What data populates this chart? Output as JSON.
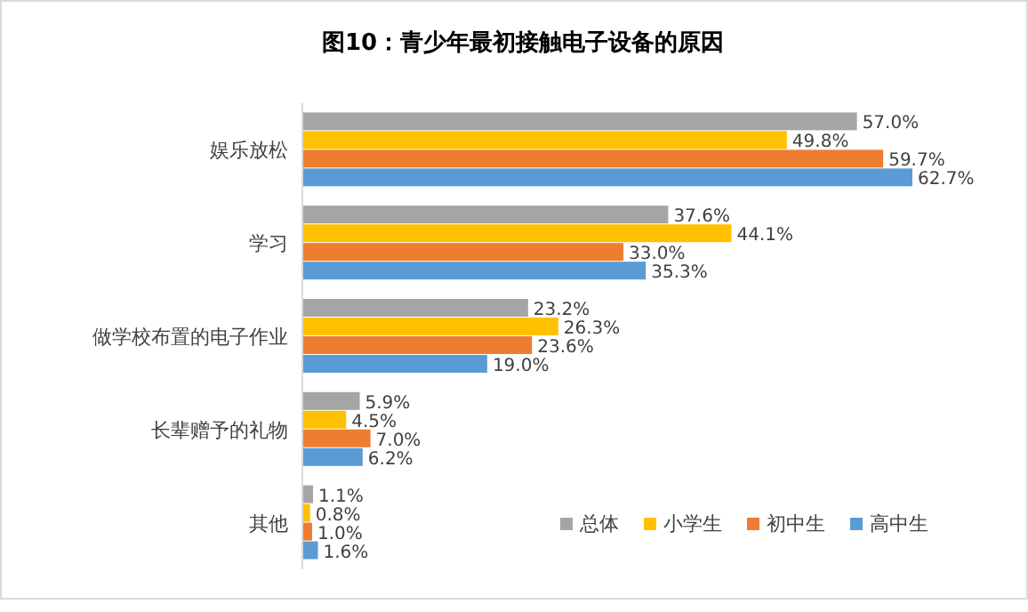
{
  "chart_data": {
    "type": "bar",
    "orientation": "horizontal",
    "title": "图10：青少年最初接触电子设备的原因",
    "categories": [
      "娱乐放松",
      "学习",
      "做学校布置的电子作业",
      "长辈赠予的礼物",
      "其他"
    ],
    "series": [
      {
        "name": "总体",
        "color": "#a5a5a5",
        "values": [
          57.0,
          37.6,
          23.2,
          5.9,
          1.1
        ],
        "value_labels": [
          "57.0%",
          "37.6%",
          "23.2%",
          "5.9%",
          "1.1%"
        ]
      },
      {
        "name": "小学生",
        "color": "#ffc000",
        "values": [
          49.8,
          44.1,
          26.3,
          4.5,
          0.8
        ],
        "value_labels": [
          "49.8%",
          "44.1%",
          "26.3%",
          "4.5%",
          "0.8%"
        ]
      },
      {
        "name": "初中生",
        "color": "#ed7d31",
        "values": [
          59.7,
          33.0,
          23.6,
          7.0,
          1.0
        ],
        "value_labels": [
          "59.7%",
          "33.0%",
          "23.6%",
          "7.0%",
          "1.0%"
        ]
      },
      {
        "name": "高中生",
        "color": "#5b9bd5",
        "values": [
          62.7,
          35.3,
          19.0,
          6.2,
          1.6
        ],
        "value_labels": [
          "62.7%",
          "35.3%",
          "19.0%",
          "6.2%",
          "1.6%"
        ]
      }
    ],
    "legend": "bottom right"
  }
}
